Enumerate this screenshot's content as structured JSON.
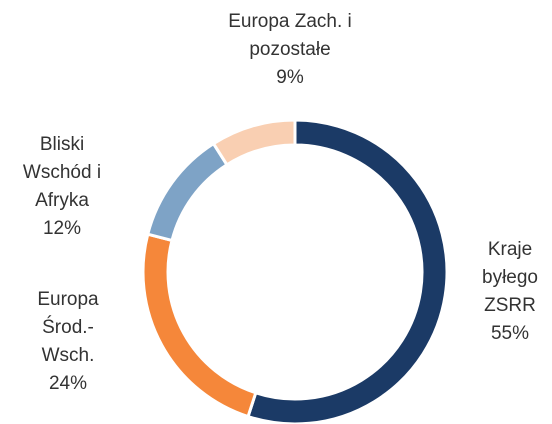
{
  "chart_data": {
    "type": "donut",
    "categories": [
      "Kraje byłego ZSRR",
      "Europa Środ.-Wsch.",
      "Bliski Wschód i Afryka",
      "Europa Zach. i pozostałe"
    ],
    "values": [
      55,
      24,
      12,
      9
    ],
    "value_labels": [
      "55%",
      "24%",
      "12%",
      "9%"
    ],
    "colors": [
      "#1b3a66",
      "#f5873a",
      "#7ea3c6",
      "#f9cfb2"
    ]
  }
}
